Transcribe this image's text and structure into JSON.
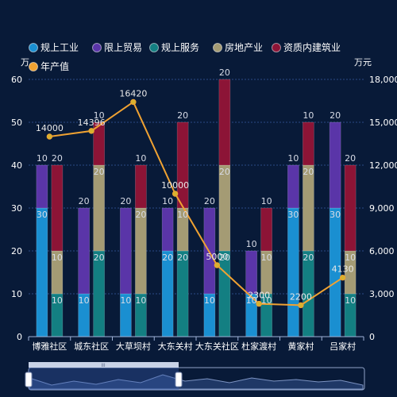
{
  "chart_data": {
    "type": "bar",
    "categories": [
      "博雅社区",
      "城东社区",
      "大草坝村",
      "大东关村",
      "大东关社区",
      "杜家渡村",
      "黄家村",
      "吕家村"
    ],
    "stacks": [
      {
        "series": [
          "规上工业",
          "限上贸易"
        ]
      },
      {
        "series": [
          "规上服务",
          "房地产业",
          "资质内建筑业"
        ]
      }
    ],
    "series": [
      {
        "name": "规上工业",
        "type": "bar",
        "stack": 0,
        "axis": "left",
        "color": "#1a8fd1",
        "values": [
          30,
          10,
          10,
          20,
          10,
          10,
          30,
          30
        ]
      },
      {
        "name": "限上贸易",
        "type": "bar",
        "stack": 0,
        "axis": "left",
        "color": "#5a35a8",
        "values": [
          10,
          20,
          20,
          10,
          20,
          10,
          10,
          20
        ]
      },
      {
        "name": "规上服务",
        "type": "bar",
        "stack": 1,
        "axis": "left",
        "color": "#137f82",
        "values": [
          10,
          20,
          10,
          20,
          20,
          10,
          20,
          10
        ]
      },
      {
        "name": "房地产业",
        "type": "bar",
        "stack": 1,
        "axis": "left",
        "color": "#a49b74",
        "values": [
          10,
          20,
          20,
          10,
          20,
          10,
          20,
          10
        ]
      },
      {
        "name": "资质内建筑业",
        "type": "bar",
        "stack": 1,
        "axis": "left",
        "color": "#8c1436",
        "values": [
          20,
          10,
          10,
          20,
          20,
          10,
          10,
          20
        ]
      },
      {
        "name": "年产值",
        "type": "line",
        "axis": "right",
        "color": "#f0a232",
        "values": [
          14000,
          14396,
          16420,
          10000,
          5000,
          2300,
          2200,
          4130
        ]
      }
    ],
    "y_left": {
      "unit": "万",
      "min": 0,
      "max": 60,
      "ticks": [
        "0",
        "10",
        "20",
        "30",
        "40",
        "50",
        "60"
      ]
    },
    "y_right": {
      "unit": "万元",
      "min": 0,
      "max": 18000,
      "ticks": [
        "0",
        "3,000",
        "6,000",
        "9,000",
        "12,000",
        "15,000",
        "18,000"
      ]
    },
    "grid": true,
    "legend_position": "top-left",
    "data_zoom": {
      "visible": true,
      "handle_label": "III"
    }
  }
}
